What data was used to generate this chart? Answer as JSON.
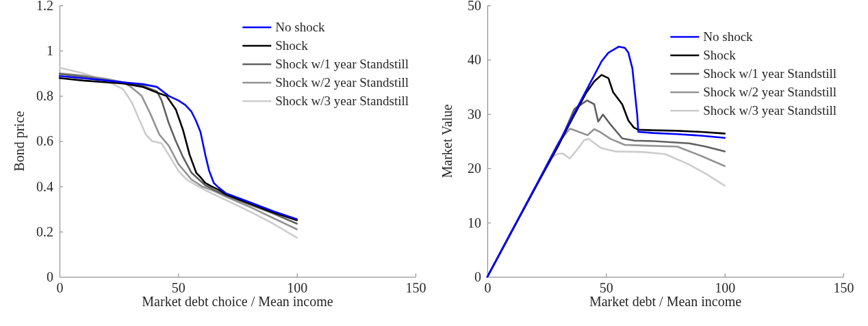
{
  "chart_data": [
    {
      "type": "line",
      "xlabel": "Market debt choice / Mean income",
      "ylabel": "Bond price",
      "xlim": [
        0,
        150
      ],
      "xticks": [
        0,
        50,
        100,
        150
      ],
      "ylim": [
        0,
        1.2
      ],
      "yticks": [
        0,
        0.2,
        0.4,
        0.6,
        0.8,
        1,
        1.2
      ],
      "legend": "top right",
      "grid": false,
      "series": [
        {
          "name": "No shock",
          "color": "#0000ff",
          "x": [
            0,
            10,
            20,
            27,
            35,
            41,
            46,
            50,
            53,
            55.6,
            57.5,
            59.4,
            61.4,
            63,
            65,
            67,
            70,
            80,
            90,
            100
          ],
          "values": [
            0.888,
            0.878,
            0.868,
            0.86,
            0.852,
            0.84,
            0.8,
            0.78,
            0.76,
            0.73,
            0.69,
            0.64,
            0.54,
            0.47,
            0.415,
            0.395,
            0.37,
            0.33,
            0.29,
            0.255
          ]
        },
        {
          "name": "Shock",
          "color": "#000000",
          "x": [
            0,
            10,
            20,
            27,
            35,
            41,
            45,
            49,
            52,
            54.8,
            57.6,
            59.4,
            61.4,
            64,
            67,
            70,
            80,
            90,
            100
          ],
          "values": [
            0.879,
            0.868,
            0.86,
            0.855,
            0.84,
            0.815,
            0.8,
            0.74,
            0.65,
            0.54,
            0.46,
            0.44,
            0.415,
            0.4,
            0.385,
            0.365,
            0.325,
            0.285,
            0.25
          ]
        },
        {
          "name": "Shock w/1 year Standstill",
          "color": "#606060",
          "x": [
            0,
            10,
            20,
            27,
            35,
            41,
            43,
            46,
            49,
            52,
            55.6,
            61.4,
            65,
            70,
            80,
            90,
            100
          ],
          "values": [
            0.897,
            0.885,
            0.87,
            0.86,
            0.845,
            0.82,
            0.78,
            0.68,
            0.6,
            0.53,
            0.46,
            0.405,
            0.385,
            0.36,
            0.32,
            0.28,
            0.235
          ]
        },
        {
          "name": "Shock w/2 year Standstill",
          "color": "#939393",
          "x": [
            0,
            10,
            20,
            27,
            30,
            34.6,
            38.3,
            42,
            46,
            50,
            55.6,
            60,
            65,
            70,
            80,
            90,
            100
          ],
          "values": [
            0.9,
            0.89,
            0.875,
            0.86,
            0.84,
            0.8,
            0.72,
            0.63,
            0.58,
            0.5,
            0.43,
            0.4,
            0.38,
            0.355,
            0.31,
            0.26,
            0.21
          ]
        },
        {
          "name": "Shock w/3 year Standstill",
          "color": "#cccccc",
          "x": [
            0,
            10,
            20,
            26.8,
            30.5,
            33.4,
            36.3,
            39,
            43,
            46,
            50,
            53.5,
            57.6,
            62,
            67,
            70,
            80,
            90,
            100
          ],
          "values": [
            0.925,
            0.9,
            0.865,
            0.83,
            0.77,
            0.7,
            0.63,
            0.6,
            0.59,
            0.54,
            0.47,
            0.43,
            0.405,
            0.38,
            0.355,
            0.34,
            0.29,
            0.235,
            0.173
          ]
        }
      ]
    },
    {
      "type": "line",
      "xlabel": "Market debt / Mean income",
      "ylabel": "Market Value",
      "xlim": [
        0,
        150
      ],
      "xticks": [
        0,
        50,
        100,
        150
      ],
      "ylim": [
        0,
        50
      ],
      "yticks": [
        0,
        10,
        20,
        30,
        40,
        50
      ],
      "legend": "top right",
      "grid": false,
      "series": [
        {
          "name": "No shock",
          "color": "#0000ff",
          "x": [
            0,
            10,
            20,
            30,
            41.5,
            48.1,
            51,
            55.3,
            57.9,
            59.4,
            61.1,
            63.1,
            63.6,
            70,
            80,
            90,
            100
          ],
          "values": [
            0,
            8.2,
            16.4,
            24.6,
            34.2,
            39.7,
            41.3,
            42.4,
            42.2,
            41.3,
            38.4,
            30,
            26.7,
            26.5,
            26.3,
            26,
            25.6
          ]
        },
        {
          "name": "Shock",
          "color": "#000000",
          "x": [
            0,
            20,
            30,
            35,
            41.5,
            45,
            48.1,
            51,
            53,
            56.8,
            59.4,
            61.7,
            63.6,
            70,
            80,
            90,
            100
          ],
          "values": [
            0,
            16.3,
            24.3,
            28.5,
            33.8,
            36,
            37.2,
            36.6,
            34,
            31.8,
            28.8,
            27.5,
            27.1,
            27,
            26.9,
            26.7,
            26.4
          ]
        },
        {
          "name": "Shock w/1 year Standstill",
          "color": "#606060",
          "x": [
            0,
            10,
            20,
            30,
            36.6,
            42,
            45,
            46.7,
            48.7,
            52,
            56.8,
            62,
            70,
            85,
            92,
            100
          ],
          "values": [
            0,
            8.2,
            16.3,
            24.2,
            30.9,
            32.5,
            31.8,
            28.6,
            29.9,
            28,
            25.5,
            25.1,
            25,
            24.6,
            24,
            23.1
          ]
        },
        {
          "name": "Shock w/2 year Standstill",
          "color": "#939393",
          "x": [
            0,
            10,
            20,
            27,
            30,
            34.8,
            38,
            42.2,
            45,
            47,
            52,
            57.9,
            65,
            80,
            90,
            100
          ],
          "values": [
            0,
            8.2,
            16.2,
            22.3,
            24.8,
            27.3,
            26.8,
            26.1,
            27.2,
            26.8,
            25.4,
            24.3,
            24.2,
            24,
            22.3,
            20.4
          ]
        },
        {
          "name": "Shock w/3 year Standstill",
          "color": "#cccccc",
          "x": [
            0,
            10,
            17.6,
            22.2,
            26.2,
            29.8,
            31.8,
            34.7,
            37.6,
            40.8,
            42.7,
            48,
            53.9,
            65.4,
            74.9,
            84.5,
            92,
            100
          ],
          "values": [
            0,
            8.1,
            14.5,
            18.3,
            21.7,
            22.7,
            22.7,
            21.8,
            23.3,
            25.2,
            25.4,
            23.7,
            23.1,
            23,
            22.6,
            20.8,
            19,
            16.8
          ]
        }
      ]
    }
  ]
}
